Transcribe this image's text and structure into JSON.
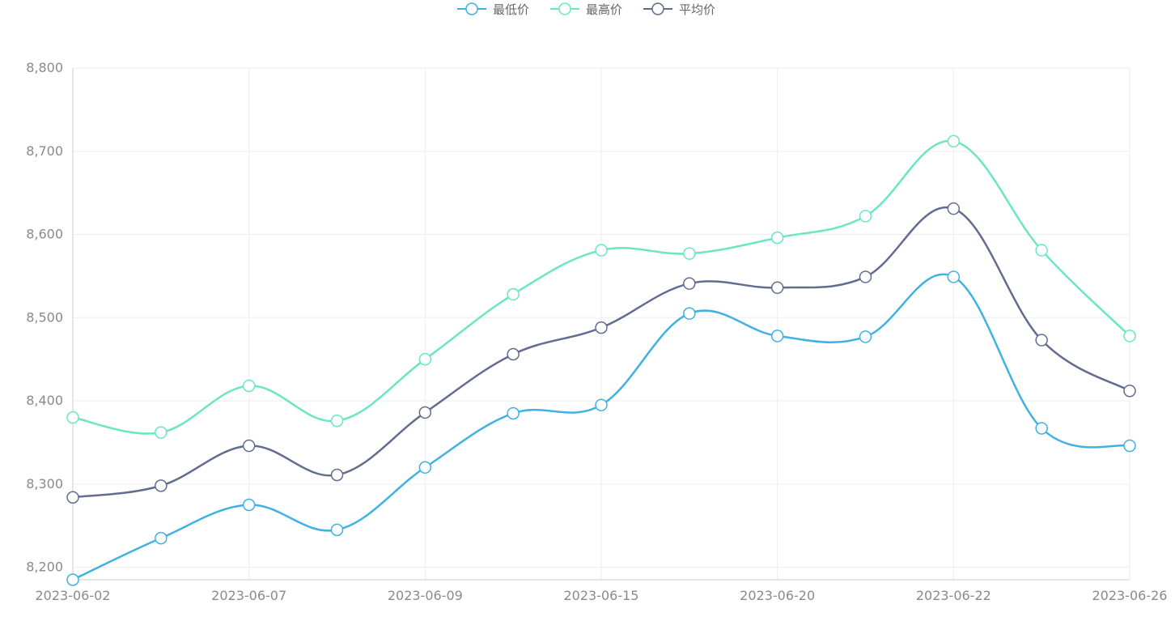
{
  "chart_data": {
    "type": "line",
    "smooth": true,
    "title": "",
    "xlabel": "",
    "ylabel": "",
    "categories": [
      "2023-06-02",
      "",
      "2023-06-07",
      "",
      "2023-06-09",
      "",
      "2023-06-15",
      "",
      "2023-06-20",
      "",
      "2023-06-22",
      "",
      "2023-06-26"
    ],
    "x_tick_labels": [
      "2023-06-02",
      "2023-06-07",
      "2023-06-09",
      "2023-06-15",
      "2023-06-20",
      "2023-06-22",
      "2023-06-26"
    ],
    "ylim": [
      8185,
      8800
    ],
    "y_ticks": [
      8200,
      8300,
      8400,
      8500,
      8600,
      8700,
      8800
    ],
    "y_tick_labels": [
      "8,200",
      "8,300",
      "8,400",
      "8,500",
      "8,600",
      "8,700",
      "8,800"
    ],
    "grid": true,
    "legend": "top-center",
    "series": [
      {
        "name": "最低价",
        "color": "#3fb1e3",
        "values": [
          8185,
          8235,
          8275,
          8245,
          8320,
          8385,
          8395,
          8505,
          8478,
          8477,
          8549,
          8367,
          8346
        ]
      },
      {
        "name": "最高价",
        "color": "#6be6c1",
        "values": [
          8380,
          8362,
          8418,
          8376,
          8450,
          8528,
          8581,
          8577,
          8596,
          8622,
          8712,
          8581,
          8478
        ]
      },
      {
        "name": "平均价",
        "color": "#626c91",
        "values": [
          8284,
          8298,
          8346,
          8311,
          8386,
          8456,
          8488,
          8541,
          8536,
          8549,
          8631,
          8473,
          8412
        ]
      }
    ]
  }
}
